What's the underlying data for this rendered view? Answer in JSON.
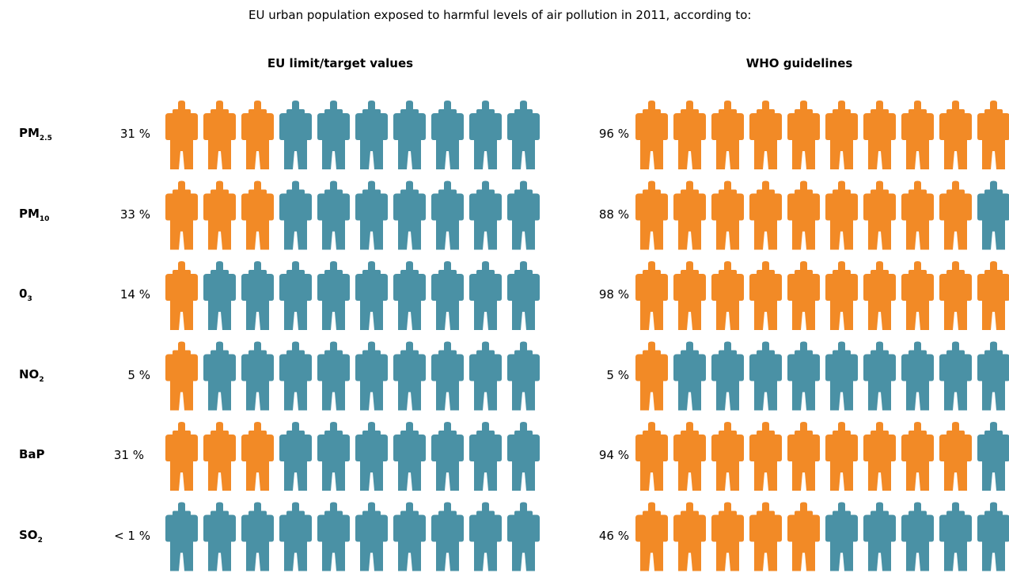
{
  "title": "EU urban population exposed to harmful levels of air pollution in 2011, according to:",
  "panels": {
    "eu": {
      "title": "EU limit/target values"
    },
    "who": {
      "title": "WHO guidelines"
    }
  },
  "colors": {
    "exposed": "#F28A26",
    "not_exposed": "#4A91A5"
  },
  "icon": "person-silhouette-icon",
  "chart_data": {
    "type": "pictogram",
    "title": "EU urban population exposed to harmful levels of air pollution in 2011, according to:",
    "figures_per_row": 10,
    "series": [
      {
        "name": "EU limit/target values"
      },
      {
        "name": "WHO guidelines"
      }
    ],
    "rows": [
      {
        "label_main": "PM",
        "label_sub": "2.5",
        "eu_label": "31 %",
        "eu_value": 31,
        "eu_figures": 3,
        "who_label": "96 %",
        "who_value": 96,
        "who_figures": 10
      },
      {
        "label_main": "PM",
        "label_sub": "10",
        "eu_label": "33 %",
        "eu_value": 33,
        "eu_figures": 3,
        "who_label": "88 %",
        "who_value": 88,
        "who_figures": 9
      },
      {
        "label_main": "0",
        "label_sub": "3",
        "eu_label": "14 %",
        "eu_value": 14,
        "eu_figures": 1,
        "who_label": "98 %",
        "who_value": 98,
        "who_figures": 10
      },
      {
        "label_main": "NO",
        "label_sub": "2",
        "eu_label": "5 %",
        "eu_value": 5,
        "eu_figures": 1,
        "who_label": "5 %",
        "who_value": 5,
        "who_figures": 1
      },
      {
        "label_main": "BaP",
        "label_sub": "",
        "eu_label": "31 %",
        "eu_value": 31,
        "eu_figures": 3,
        "who_label": "94 %",
        "who_value": 94,
        "who_figures": 9
      },
      {
        "label_main": "SO",
        "label_sub": "2",
        "eu_label": "< 1 %",
        "eu_value": 1,
        "eu_figures": 0,
        "who_label": "46 %",
        "who_value": 46,
        "who_figures": 5
      }
    ]
  }
}
